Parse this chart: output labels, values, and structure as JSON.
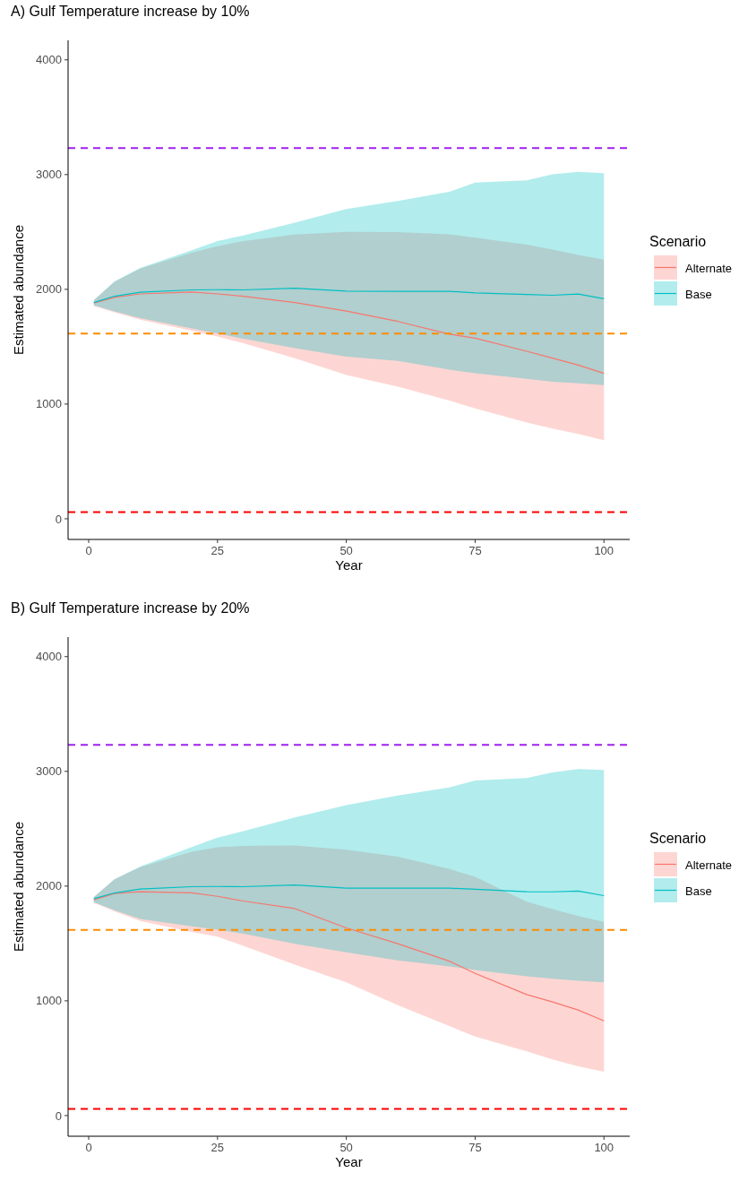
{
  "chart_data": [
    {
      "type": "line",
      "title": "A) Gulf Temperature increase by 10%",
      "xlabel": "Year",
      "ylabel": "Estimated abundance",
      "legend_title": "Scenario",
      "legend": "right",
      "x": [
        1,
        5,
        10,
        20,
        25,
        30,
        40,
        50,
        60,
        70,
        75,
        85,
        90,
        95,
        100
      ],
      "xlim": [
        -4,
        105
      ],
      "ylim": [
        -180,
        4170
      ],
      "xticks": [
        0,
        25,
        50,
        75,
        100
      ],
      "yticks": [
        0,
        1000,
        2000,
        3000,
        4000
      ],
      "series": [
        {
          "name": "Alternate",
          "color": "#f8766d",
          "values": [
            1880,
            1930,
            1960,
            1977,
            1960,
            1940,
            1885,
            1810,
            1720,
            1610,
            1574,
            1460,
            1400,
            1340,
            1268
          ],
          "lower": [
            1855,
            1800,
            1735,
            1640,
            1589,
            1530,
            1399,
            1254,
            1152,
            1030,
            962,
            840,
            787,
            740,
            685
          ],
          "upper": [
            1905,
            2065,
            2180,
            2320,
            2376,
            2420,
            2478,
            2501,
            2499,
            2480,
            2449,
            2390,
            2347,
            2300,
            2259
          ]
        },
        {
          "name": "Base",
          "color": "#00bfc4",
          "values": [
            1885,
            1940,
            1975,
            1995,
            1997,
            1995,
            2010,
            1985,
            1983,
            1983,
            1968,
            1955,
            1948,
            1959,
            1918
          ],
          "lower": [
            1860,
            1808,
            1749,
            1660,
            1615,
            1570,
            1487,
            1414,
            1376,
            1300,
            1268,
            1220,
            1195,
            1180,
            1166
          ],
          "upper": [
            1905,
            2070,
            2187,
            2340,
            2420,
            2470,
            2580,
            2700,
            2770,
            2850,
            2930,
            2950,
            3003,
            3023,
            3012
          ]
        }
      ],
      "ref_lines": [
        {
          "axis": "y",
          "value": 3230,
          "color": "#a020f0",
          "line_style": "dashed"
        },
        {
          "axis": "y",
          "value": 1615,
          "color": "#ff8c00",
          "line_style": "dashed"
        },
        {
          "axis": "y",
          "value": 58,
          "color": "#ff0000",
          "line_style": "dashed"
        }
      ]
    },
    {
      "type": "line",
      "title": "B) Gulf Temperature increase by 20%",
      "xlabel": "Year",
      "ylabel": "Estimated abundance",
      "legend_title": "Scenario",
      "legend": "right",
      "x": [
        1,
        5,
        10,
        20,
        25,
        30,
        40,
        50,
        60,
        70,
        75,
        85,
        90,
        95,
        100
      ],
      "xlim": [
        -4,
        105
      ],
      "ylim": [
        -180,
        4170
      ],
      "xticks": [
        0,
        25,
        50,
        75,
        100
      ],
      "yticks": [
        0,
        1000,
        2000,
        3000,
        4000
      ],
      "series": [
        {
          "name": "Alternate",
          "color": "#f8766d",
          "values": [
            1880,
            1935,
            1951,
            1942,
            1911,
            1870,
            1804,
            1636,
            1498,
            1346,
            1239,
            1055,
            990,
            920,
            826
          ],
          "lower": [
            1855,
            1780,
            1697,
            1600,
            1560,
            1480,
            1315,
            1162,
            963,
            780,
            688,
            560,
            489,
            430,
            382
          ],
          "upper": [
            1905,
            2060,
            2165,
            2300,
            2339,
            2350,
            2355,
            2318,
            2257,
            2150,
            2080,
            1865,
            1800,
            1740,
            1688
          ]
        },
        {
          "name": "Base",
          "color": "#00bfc4",
          "values": [
            1890,
            1940,
            1975,
            1995,
            1997,
            1995,
            2009,
            1982,
            1982,
            1982,
            1972,
            1951,
            1950,
            1957,
            1917
          ],
          "lower": [
            1860,
            1790,
            1713,
            1650,
            1621,
            1585,
            1498,
            1422,
            1352,
            1300,
            1269,
            1215,
            1193,
            1175,
            1162
          ],
          "upper": [
            1905,
            2060,
            2171,
            2340,
            2422,
            2480,
            2599,
            2706,
            2789,
            2860,
            2920,
            2942,
            2990,
            3021,
            3012
          ]
        }
      ],
      "ref_lines": [
        {
          "axis": "y",
          "value": 3230,
          "color": "#a020f0",
          "line_style": "dashed"
        },
        {
          "axis": "y",
          "value": 1618,
          "color": "#ff8c00",
          "line_style": "dashed"
        },
        {
          "axis": "y",
          "value": 58,
          "color": "#ff0000",
          "line_style": "dashed"
        }
      ]
    }
  ]
}
